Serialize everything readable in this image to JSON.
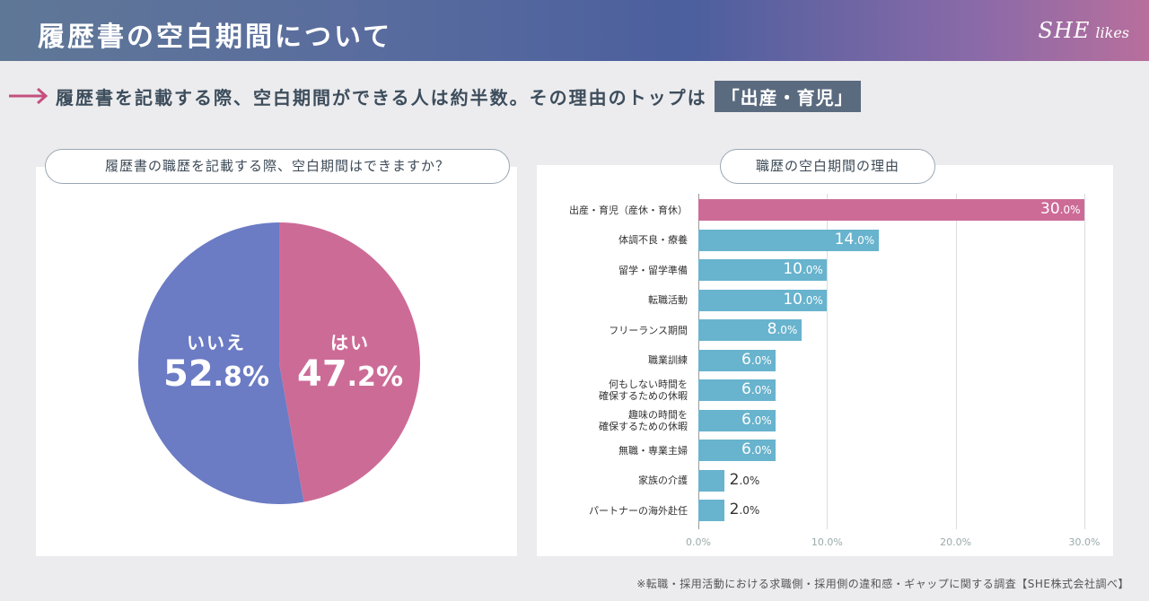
{
  "header": {
    "title": "履歴書の空白期間について",
    "brand_she": "SHE",
    "brand_likes": "likes"
  },
  "headline": {
    "text": "履歴書を記載する際、空白期間ができる人は約半数。その理由のトップは",
    "badge": "「出産・育児」"
  },
  "left": {
    "question": "履歴書の職歴を記載する際、空白期間はできますか？"
  },
  "right": {
    "question": "職歴の空白期間の理由"
  },
  "footnote": "※転職・採用活動における求職側・採用側の違和感・ギャップに関する調査【SHE株式会社調べ】",
  "colors": {
    "yes": "#cd6b97",
    "no": "#6b7bc4",
    "top_bar": "#cd6b97",
    "bar": "#68b3cd"
  },
  "chart_data": [
    {
      "type": "pie",
      "title": "履歴書の職歴を記載する際、空白期間はできますか？",
      "slices": [
        {
          "name": "はい",
          "value": 47.2,
          "label": "47.2%",
          "pc_main": "47",
          "pc_dec": ".2",
          "pc_unit": "%"
        },
        {
          "name": "いいえ",
          "value": 52.8,
          "label": "52.8%",
          "pc_main": "52",
          "pc_dec": ".8",
          "pc_unit": "%"
        }
      ]
    },
    {
      "type": "bar",
      "orientation": "horizontal",
      "title": "職歴の空白期間の理由",
      "xlim": [
        0,
        30
      ],
      "ticks": [
        "0.0%",
        "10.0%",
        "20.0%",
        "30.0%"
      ],
      "categories": [
        [
          "出産・育児（産休・育休）"
        ],
        [
          "体調不良・療養"
        ],
        [
          "留学・留学準備"
        ],
        [
          "転職活動"
        ],
        [
          "フリーランス期間"
        ],
        [
          "職業訓練"
        ],
        [
          "何もしない時間を",
          "確保するための休暇"
        ],
        [
          "趣味の時間を",
          "確保するための休暇"
        ],
        [
          "無職・専業主婦"
        ],
        [
          "家族の介護"
        ],
        [
          "パートナーの海外赴任"
        ]
      ],
      "values": [
        30,
        14,
        10,
        10,
        8,
        6,
        6,
        6,
        6,
        2,
        2
      ],
      "labels_main": [
        "30",
        "14",
        "10",
        "10",
        "8",
        "6",
        "6",
        "6",
        "6",
        "2",
        "2"
      ],
      "labels_dec": [
        ".0%",
        ".0%",
        ".0%",
        ".0%",
        ".0%",
        ".0%",
        ".0%",
        ".0%",
        ".0%",
        ".0%",
        ".0%"
      ]
    }
  ]
}
